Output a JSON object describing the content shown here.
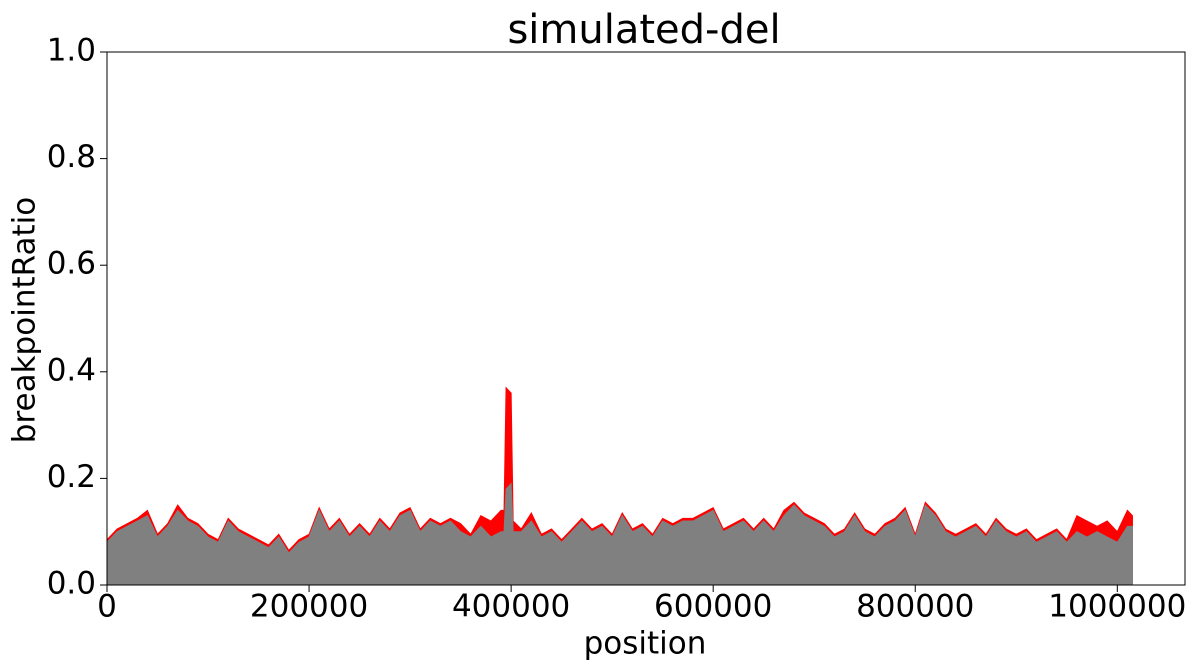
{
  "chart_data": {
    "type": "area",
    "title": "simulated-del",
    "xlabel": "position",
    "ylabel": "breakpointRatio",
    "x": [
      0,
      10000,
      20000,
      30000,
      40000,
      50000,
      60000,
      70000,
      80000,
      90000,
      100000,
      110000,
      120000,
      130000,
      140000,
      150000,
      160000,
      170000,
      180000,
      190000,
      200000,
      210000,
      220000,
      230000,
      240000,
      250000,
      260000,
      270000,
      280000,
      290000,
      300000,
      310000,
      320000,
      330000,
      340000,
      350000,
      360000,
      370000,
      380000,
      390000,
      393000,
      395000,
      400000,
      402000,
      410000,
      420000,
      430000,
      440000,
      450000,
      460000,
      470000,
      480000,
      490000,
      500000,
      510000,
      520000,
      530000,
      540000,
      550000,
      560000,
      570000,
      580000,
      590000,
      600000,
      610000,
      620000,
      630000,
      640000,
      650000,
      660000,
      670000,
      680000,
      690000,
      700000,
      710000,
      720000,
      730000,
      740000,
      750000,
      760000,
      770000,
      780000,
      790000,
      800000,
      810000,
      820000,
      830000,
      840000,
      850000,
      860000,
      870000,
      880000,
      890000,
      900000,
      910000,
      920000,
      930000,
      940000,
      950000,
      960000,
      970000,
      980000,
      990000,
      1000000,
      1010000,
      1015000
    ],
    "series": [
      {
        "color": "#ff0000",
        "values": [
          0.085,
          0.105,
          0.115,
          0.125,
          0.14,
          0.095,
          0.115,
          0.15,
          0.125,
          0.115,
          0.095,
          0.085,
          0.125,
          0.105,
          0.095,
          0.085,
          0.075,
          0.095,
          0.065,
          0.085,
          0.095,
          0.145,
          0.105,
          0.125,
          0.095,
          0.115,
          0.095,
          0.125,
          0.105,
          0.135,
          0.145,
          0.105,
          0.125,
          0.115,
          0.125,
          0.115,
          0.095,
          0.13,
          0.12,
          0.14,
          0.14,
          0.37,
          0.36,
          0.12,
          0.105,
          0.135,
          0.095,
          0.105,
          0.085,
          0.105,
          0.125,
          0.105,
          0.115,
          0.095,
          0.135,
          0.105,
          0.115,
          0.095,
          0.125,
          0.115,
          0.125,
          0.125,
          0.135,
          0.145,
          0.105,
          0.115,
          0.125,
          0.105,
          0.125,
          0.105,
          0.14,
          0.155,
          0.135,
          0.125,
          0.115,
          0.095,
          0.105,
          0.135,
          0.105,
          0.095,
          0.115,
          0.125,
          0.145,
          0.095,
          0.155,
          0.135,
          0.105,
          0.095,
          0.105,
          0.115,
          0.095,
          0.125,
          0.105,
          0.095,
          0.105,
          0.085,
          0.095,
          0.105,
          0.085,
          0.13,
          0.12,
          0.11,
          0.12,
          0.1,
          0.14,
          0.13
        ]
      },
      {
        "color": "#808080",
        "values": [
          0.08,
          0.1,
          0.11,
          0.12,
          0.13,
          0.09,
          0.11,
          0.14,
          0.12,
          0.11,
          0.09,
          0.08,
          0.12,
          0.1,
          0.09,
          0.08,
          0.07,
          0.09,
          0.06,
          0.08,
          0.09,
          0.14,
          0.1,
          0.12,
          0.09,
          0.11,
          0.09,
          0.12,
          0.1,
          0.13,
          0.14,
          0.1,
          0.12,
          0.11,
          0.12,
          0.1,
          0.09,
          0.11,
          0.09,
          0.1,
          0.1,
          0.18,
          0.19,
          0.1,
          0.1,
          0.12,
          0.09,
          0.1,
          0.08,
          0.1,
          0.12,
          0.1,
          0.11,
          0.09,
          0.13,
          0.1,
          0.11,
          0.09,
          0.12,
          0.11,
          0.12,
          0.12,
          0.13,
          0.14,
          0.1,
          0.11,
          0.12,
          0.1,
          0.12,
          0.1,
          0.13,
          0.15,
          0.13,
          0.12,
          0.11,
          0.09,
          0.1,
          0.13,
          0.1,
          0.09,
          0.11,
          0.12,
          0.14,
          0.09,
          0.15,
          0.13,
          0.1,
          0.09,
          0.1,
          0.11,
          0.09,
          0.12,
          0.1,
          0.09,
          0.1,
          0.08,
          0.09,
          0.1,
          0.08,
          0.1,
          0.09,
          0.1,
          0.09,
          0.08,
          0.11,
          0.11
        ]
      }
    ],
    "xlim": [
      0,
      1067000
    ],
    "ylim": [
      0,
      1
    ],
    "xticks": [
      0,
      200000,
      400000,
      600000,
      800000,
      1000000
    ],
    "yticks": [
      {
        "value": 0,
        "label": "0.0"
      },
      0.2,
      0.4,
      0.6,
      0.8,
      {
        "value": 1,
        "label": "1.0"
      }
    ]
  }
}
